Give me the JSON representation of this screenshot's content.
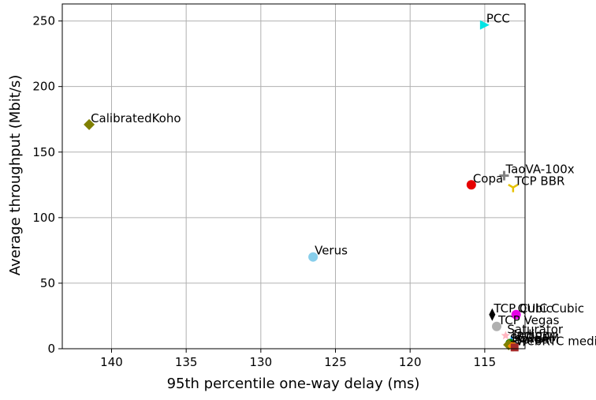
{
  "chart_data": {
    "type": "scatter",
    "title": "",
    "xlabel": "95th percentile one-way delay (ms)",
    "ylabel": "Average throughput (Mbit/s)",
    "x_inverted": true,
    "xlim": [
      143.3,
      112.3
    ],
    "ylim": [
      0,
      263
    ],
    "x_ticks": [
      "140",
      "135",
      "130",
      "125",
      "120",
      "115"
    ],
    "y_ticks": [
      "0",
      "50",
      "100",
      "150",
      "200",
      "250"
    ],
    "grid": true,
    "points": [
      {
        "label": "PCC",
        "x": 115.0,
        "y": 247,
        "marker": "triangle-right",
        "color": "#00e5e5"
      },
      {
        "label": "CalibratedKoho",
        "x": 141.5,
        "y": 171,
        "marker": "diamond",
        "color": "#808000"
      },
      {
        "label": "TaoVA-100x",
        "x": 113.7,
        "y": 132,
        "marker": "plus",
        "color": "#808080"
      },
      {
        "label": "Copa",
        "x": 115.9,
        "y": 125,
        "marker": "circle",
        "color": "#e60000"
      },
      {
        "label": "TCP BBR",
        "x": 113.1,
        "y": 123,
        "marker": "tri-down",
        "color": "#e6c200"
      },
      {
        "label": "Verus",
        "x": 126.5,
        "y": 70,
        "marker": "circle",
        "color": "#87ceeb"
      },
      {
        "label": "TCP Cubic",
        "x": 114.5,
        "y": 26,
        "marker": "thin-diamond",
        "color": "#000000"
      },
      {
        "label": "QUIC Cubic",
        "x": 112.9,
        "y": 26,
        "marker": "circle",
        "color": "#e600e6"
      },
      {
        "label": "TCP Vegas",
        "x": 114.2,
        "y": 17,
        "marker": "circle",
        "color": "#b0b0b0"
      },
      {
        "label": "Saturator",
        "x": 113.6,
        "y": 10,
        "marker": "star",
        "color": "#ffb6c1"
      },
      {
        "label": "Indigo",
        "x": 113.2,
        "y": 6,
        "marker": "tri-up",
        "color": "#1e90ff"
      },
      {
        "label": "LEDBAT",
        "x": 113.3,
        "y": 4,
        "marker": "circle",
        "color": "#008000"
      },
      {
        "label": "SCReAM",
        "x": 113.4,
        "y": 3,
        "marker": "diamond",
        "color": "#808000"
      },
      {
        "label": "Sprout",
        "x": 113.1,
        "y": 2,
        "marker": "diamond",
        "color": "#ff8c00"
      },
      {
        "label": "WebRTC media",
        "x": 113.0,
        "y": 1,
        "marker": "square",
        "color": "#a52a2a"
      }
    ]
  }
}
